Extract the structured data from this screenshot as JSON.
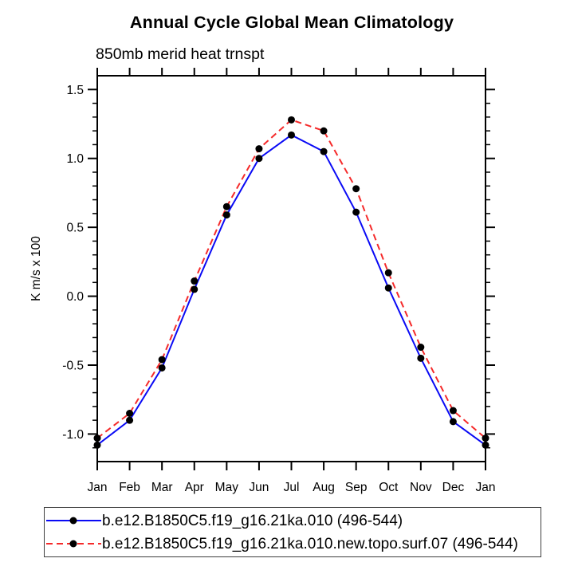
{
  "page": {
    "background": "#ffffff",
    "axis_color": "#000000",
    "text_color": "#000000"
  },
  "chart_data": {
    "type": "line",
    "title": "Annual Cycle Global Mean Climatology",
    "subtitle": "850mb merid heat trnspt",
    "xlabel": "",
    "ylabel": "K m/s x 100",
    "x_categories": [
      "Jan",
      "Feb",
      "Mar",
      "Apr",
      "May",
      "Jun",
      "Jul",
      "Aug",
      "Sep",
      "Oct",
      "Nov",
      "Dec",
      "Jan"
    ],
    "ylim": [
      -1.2,
      1.6
    ],
    "y_major_ticks": [
      -1.0,
      -0.5,
      0.0,
      0.5,
      1.0,
      1.5
    ],
    "y_major_tick_labels": [
      "-1.0",
      "-0.5",
      "0.0",
      "0.5",
      "1.0",
      "1.5"
    ],
    "y_minor_tick_step": 0.1,
    "grid": false,
    "legend_position": "bottom",
    "marker": "filled-circle",
    "marker_color": "#000000",
    "series": [
      {
        "name": "b.e12.B1850C5.f19_g16.21ka.010 (496-544)",
        "color": "#0a0af5",
        "line_style": "solid",
        "values": [
          -1.08,
          -0.9,
          -0.52,
          0.05,
          0.59,
          1.0,
          1.17,
          1.05,
          0.61,
          0.06,
          -0.45,
          -0.91,
          -1.08
        ]
      },
      {
        "name": "b.e12.B1850C5.f19_g16.21ka.010.new.topo.surf.07 (496-544)",
        "color": "#f52a2a",
        "line_style": "dashed",
        "values": [
          -1.03,
          -0.85,
          -0.46,
          0.11,
          0.65,
          1.07,
          1.28,
          1.2,
          0.78,
          0.17,
          -0.37,
          -0.83,
          -1.03
        ]
      }
    ]
  }
}
